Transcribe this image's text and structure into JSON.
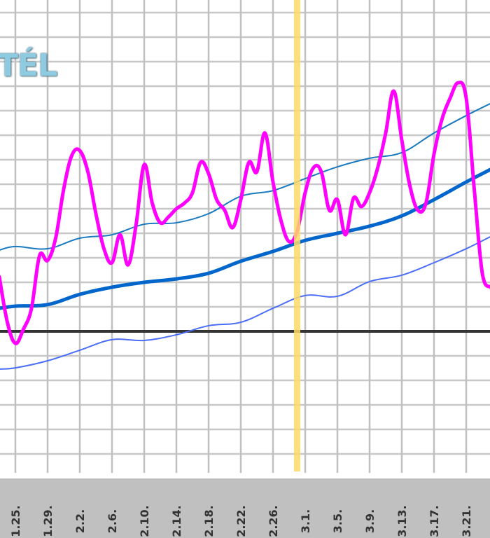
{
  "chart_data": {
    "type": "line",
    "title": "TÉL",
    "xlabel": "",
    "ylabel": "",
    "x_tick_labels": [
      "1.25.",
      "1.29.",
      "2.2.",
      "2.6.",
      "2.10.",
      "2.14.",
      "2.18.",
      "2.22.",
      "2.26.",
      "3.1.",
      "3.5.",
      "3.9.",
      "3.13.",
      "3.17.",
      "3.21."
    ],
    "x_tick_dates": [
      "1.25",
      "1.29",
      "2.2",
      "2.6",
      "2.10",
      "2.14",
      "2.18",
      "2.22",
      "2.26",
      "3.1",
      "3.5",
      "3.9",
      "3.13",
      "3.17",
      "3.21"
    ],
    "grid": true,
    "y_ticks_visible": false,
    "ylim": [
      -5.8,
      13.5
    ],
    "xlim": [
      "1.23",
      "3.24"
    ],
    "reference_line": {
      "y": 0,
      "color": "#333333"
    },
    "highlight_date": {
      "x": "2.29",
      "color": "#ffd966"
    },
    "series": [
      {
        "color": "#ff00ff",
        "x": [
          "1.23",
          "1.24",
          "1.25",
          "1.26",
          "1.27",
          "1.28",
          "1.29",
          "1.30",
          "1.31",
          "2.1",
          "2.2",
          "2.3",
          "2.4",
          "2.5",
          "2.6",
          "2.7",
          "2.8",
          "2.9",
          "2.10",
          "2.11",
          "2.12",
          "2.13",
          "2.14",
          "2.15",
          "2.16",
          "2.17",
          "2.18",
          "2.19",
          "2.20",
          "2.21",
          "2.22",
          "2.23",
          "2.24",
          "2.25",
          "2.26",
          "2.27",
          "2.28",
          "2.29",
          "3.1",
          "3.2",
          "3.3",
          "3.4",
          "3.5",
          "3.6",
          "3.7",
          "3.8",
          "3.9",
          "3.10",
          "3.11",
          "3.12",
          "3.13",
          "3.14",
          "3.15",
          "3.16",
          "3.17",
          "3.18",
          "3.19",
          "3.20",
          "3.21",
          "3.22",
          "3.23",
          "3.24"
        ],
        "values": [
          2.23,
          0.37,
          -0.49,
          0.09,
          0.94,
          3.09,
          2.89,
          3.8,
          5.8,
          7.17,
          7.37,
          6.51,
          4.8,
          3.37,
          2.8,
          3.94,
          2.71,
          4.37,
          6.8,
          5.23,
          4.43,
          4.66,
          5.0,
          5.23,
          5.66,
          6.89,
          6.43,
          5.37,
          4.94,
          4.23,
          5.37,
          6.89,
          6.51,
          8.09,
          6.09,
          4.51,
          3.66,
          4.09,
          5.66,
          6.66,
          6.51,
          4.94,
          5.37,
          3.94,
          5.43,
          5.09,
          5.66,
          6.66,
          8.09,
          9.8,
          7.8,
          5.94,
          4.94,
          5.23,
          7.23,
          8.66,
          9.51,
          10.14,
          9.51,
          5.8,
          2.37,
          1.8
        ]
      },
      {
        "color": "#1a7abf",
        "x": [
          "1.23",
          "1.25",
          "1.29",
          "2.2",
          "2.6",
          "2.10",
          "2.14",
          "2.18",
          "2.22",
          "2.26",
          "3.1",
          "3.5",
          "3.9",
          "3.13",
          "3.17",
          "3.21",
          "3.24"
        ],
        "values": [
          3.31,
          3.46,
          3.37,
          3.8,
          3.94,
          4.37,
          4.43,
          4.8,
          5.51,
          5.74,
          6.23,
          6.71,
          7.06,
          7.29,
          8.09,
          8.8,
          9.29
        ]
      },
      {
        "color": "#0066cc",
        "x": [
          "1.23",
          "1.25",
          "1.29",
          "2.2",
          "2.6",
          "2.10",
          "2.14",
          "2.18",
          "2.22",
          "2.26",
          "3.1",
          "3.5",
          "3.9",
          "3.13",
          "3.17",
          "3.21",
          "3.24"
        ],
        "values": [
          0.94,
          1.03,
          1.09,
          1.51,
          1.8,
          2.0,
          2.14,
          2.37,
          2.86,
          3.26,
          3.71,
          4.0,
          4.29,
          4.71,
          5.37,
          6.09,
          6.6
        ]
      },
      {
        "color": "#4a6ef5",
        "x": [
          "1.23",
          "1.25",
          "1.29",
          "2.2",
          "2.6",
          "2.10",
          "2.14",
          "2.18",
          "2.22",
          "2.26",
          "3.1",
          "3.5",
          "3.9",
          "3.13",
          "3.17",
          "3.21",
          "3.24"
        ],
        "values": [
          -1.54,
          -1.49,
          -1.2,
          -0.77,
          -0.34,
          -0.37,
          -0.14,
          0.23,
          0.37,
          0.94,
          1.46,
          1.43,
          2.03,
          2.29,
          2.8,
          3.37,
          3.86
        ]
      }
    ]
  }
}
